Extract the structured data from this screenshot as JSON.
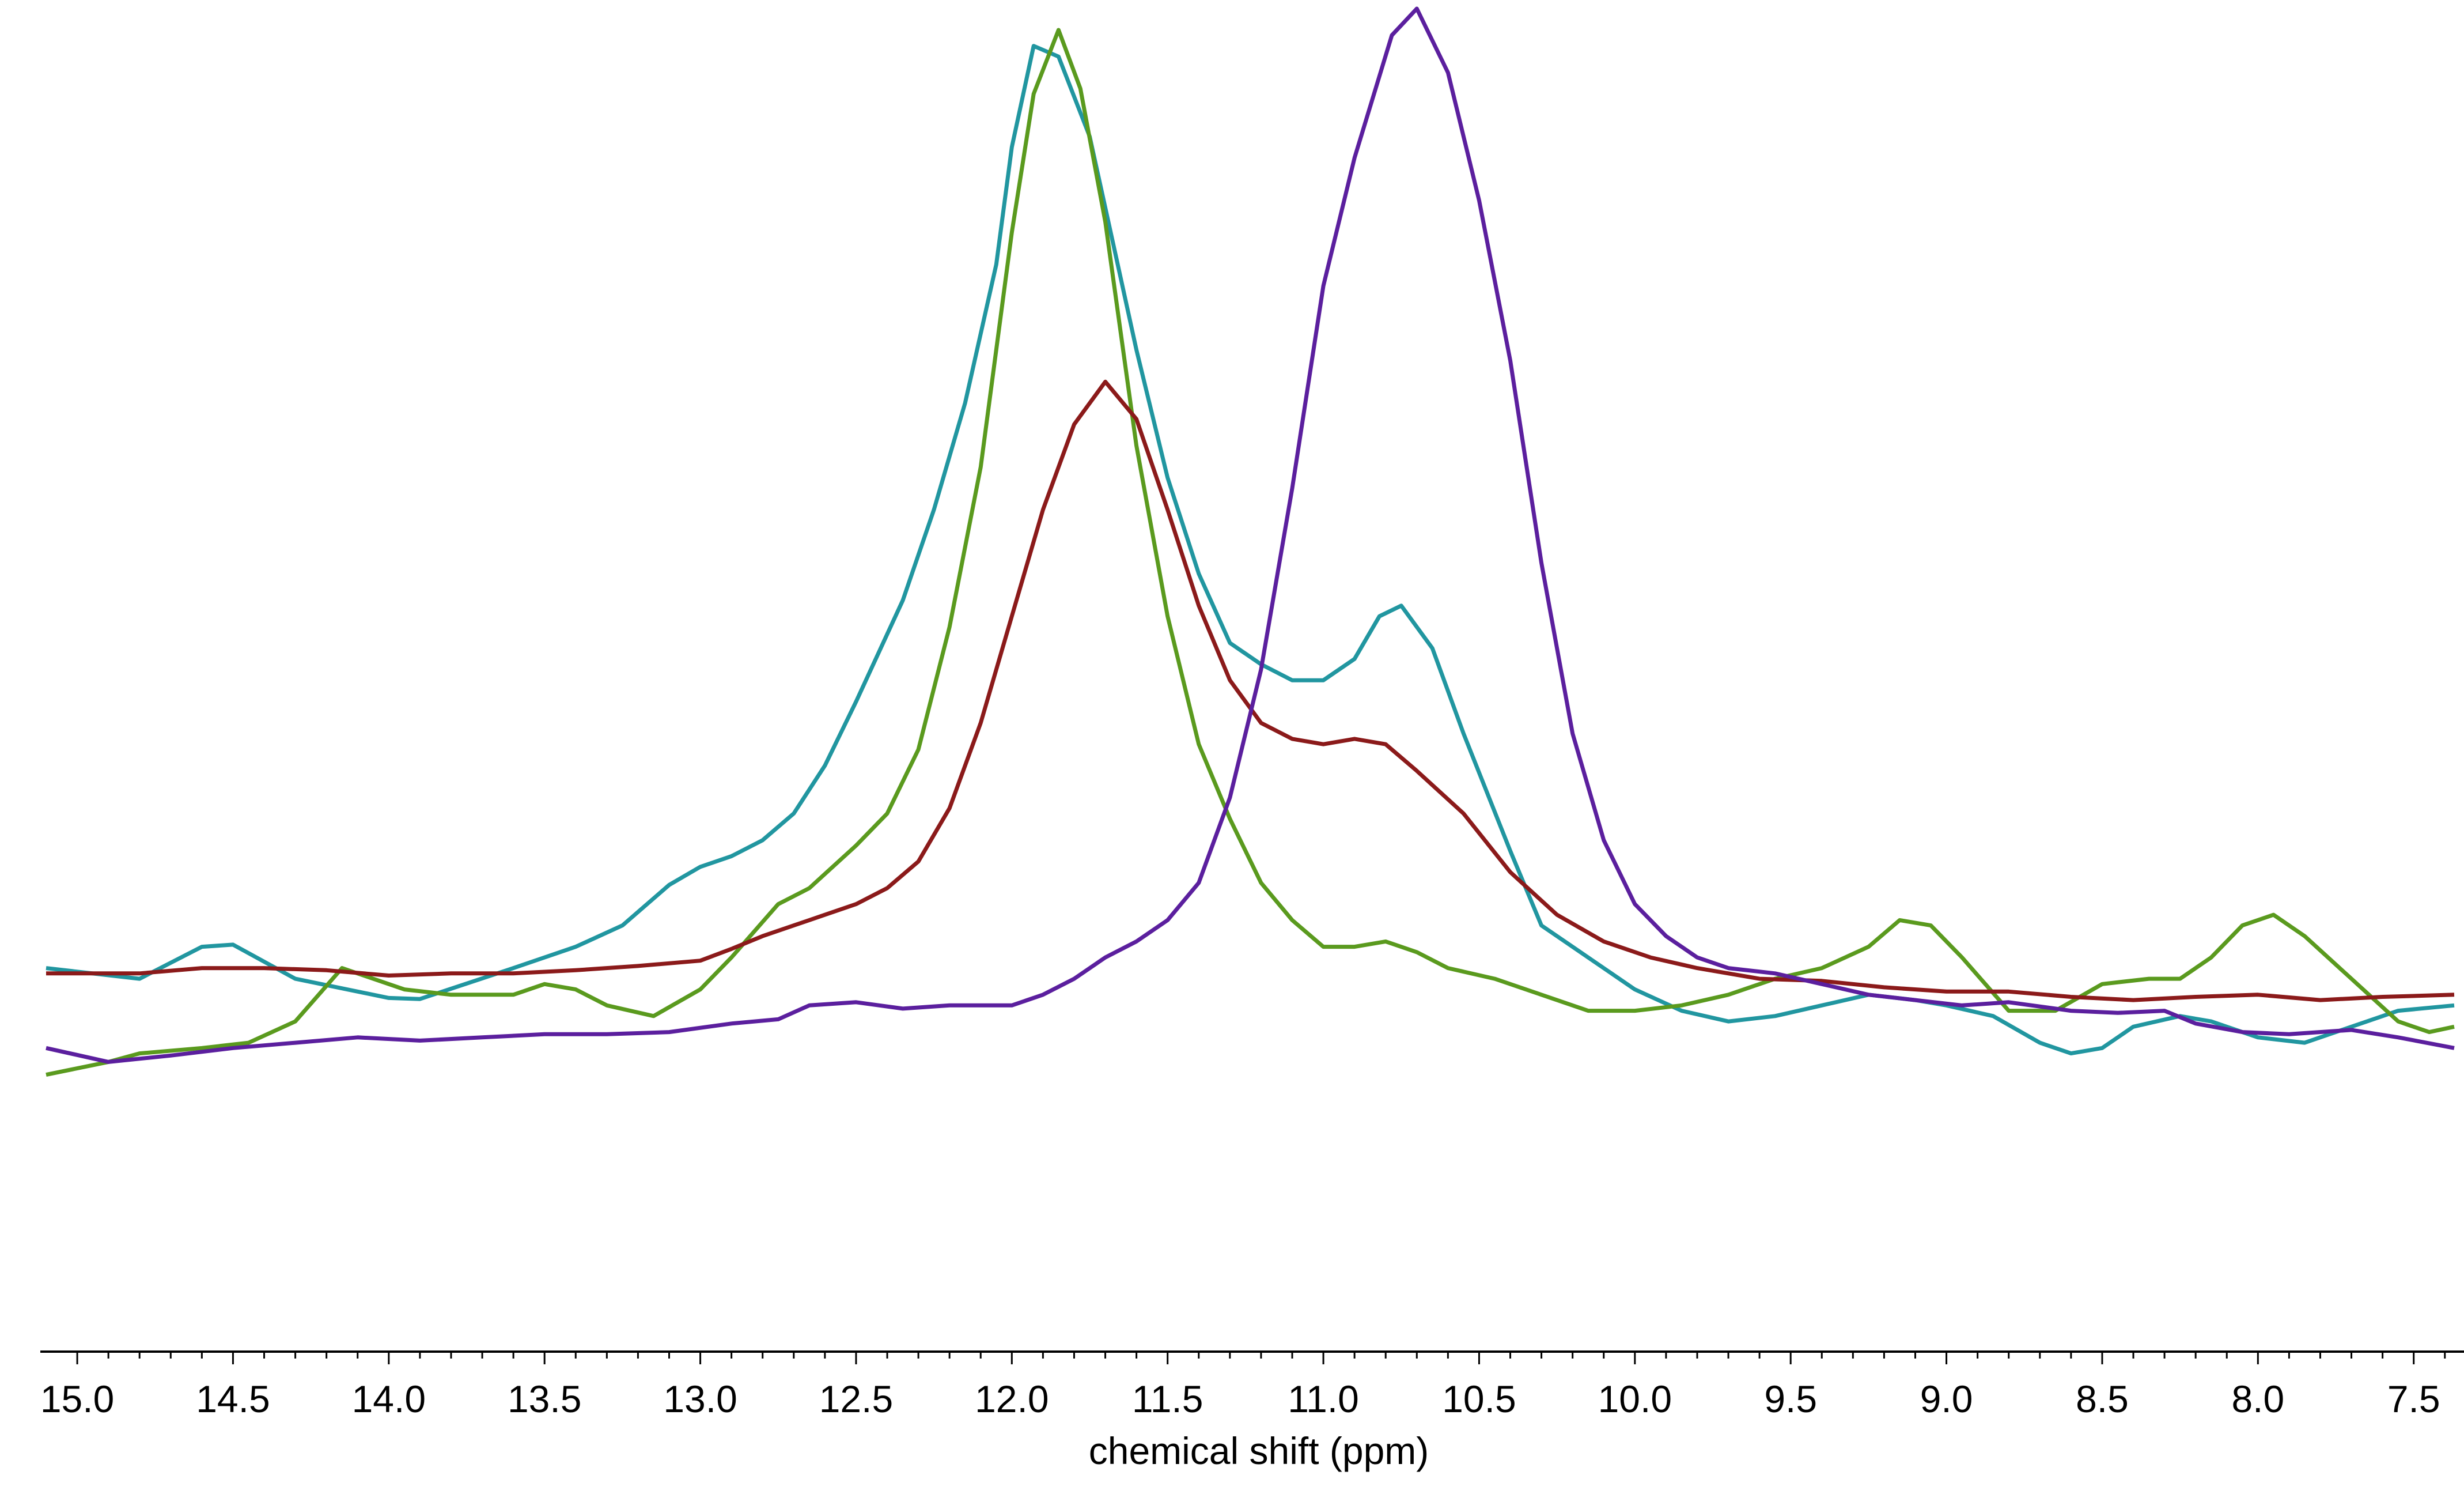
{
  "chart_data": {
    "type": "line",
    "title": "",
    "xlabel": "chemical shift (ppm)",
    "ylabel": "",
    "x_reversed": true,
    "xlim": [
      15.1,
      7.37
    ],
    "ylim": [
      -0.13,
      1.0
    ],
    "grid": false,
    "legend": "none",
    "x_ticks": [
      "15.0",
      "14.5",
      "14.0",
      "13.5",
      "13.0",
      "12.5",
      "12.0",
      "11.5",
      "11.0",
      "10.5",
      "10.0",
      "9.5",
      "9.0",
      "8.5",
      "8.0",
      "7.5"
    ],
    "series": [
      {
        "color": "#2196a0",
        "points": [
          [
            15.1,
            0.1
          ],
          [
            14.8,
            0.09
          ],
          [
            14.6,
            0.12
          ],
          [
            14.5,
            0.122
          ],
          [
            14.3,
            0.09
          ],
          [
            14.0,
            0.072
          ],
          [
            13.9,
            0.071
          ],
          [
            13.6,
            0.1
          ],
          [
            13.4,
            0.12
          ],
          [
            13.25,
            0.14
          ],
          [
            13.1,
            0.178
          ],
          [
            13.0,
            0.195
          ],
          [
            12.9,
            0.205
          ],
          [
            12.8,
            0.22
          ],
          [
            12.7,
            0.245
          ],
          [
            12.6,
            0.29
          ],
          [
            12.5,
            0.35
          ],
          [
            12.35,
            0.445
          ],
          [
            12.25,
            0.53
          ],
          [
            12.15,
            0.63
          ],
          [
            12.05,
            0.76
          ],
          [
            12.0,
            0.87
          ],
          [
            11.93,
            0.965
          ],
          [
            11.85,
            0.955
          ],
          [
            11.75,
            0.88
          ],
          [
            11.6,
            0.68
          ],
          [
            11.5,
            0.56
          ],
          [
            11.4,
            0.47
          ],
          [
            11.3,
            0.405
          ],
          [
            11.2,
            0.385
          ],
          [
            11.1,
            0.37
          ],
          [
            11.0,
            0.37
          ],
          [
            10.9,
            0.39
          ],
          [
            10.82,
            0.43
          ],
          [
            10.75,
            0.44
          ],
          [
            10.65,
            0.4
          ],
          [
            10.55,
            0.32
          ],
          [
            10.4,
            0.21
          ],
          [
            10.3,
            0.14
          ],
          [
            10.15,
            0.11
          ],
          [
            10.0,
            0.08
          ],
          [
            9.85,
            0.06
          ],
          [
            9.7,
            0.05
          ],
          [
            9.55,
            0.055
          ],
          [
            9.4,
            0.065
          ],
          [
            9.25,
            0.075
          ],
          [
            9.1,
            0.07
          ],
          [
            9.0,
            0.065
          ],
          [
            8.85,
            0.055
          ],
          [
            8.7,
            0.03
          ],
          [
            8.6,
            0.02
          ],
          [
            8.5,
            0.025
          ],
          [
            8.4,
            0.045
          ],
          [
            8.25,
            0.055
          ],
          [
            8.15,
            0.05
          ],
          [
            8.0,
            0.035
          ],
          [
            7.85,
            0.03
          ],
          [
            7.7,
            0.045
          ],
          [
            7.55,
            0.06
          ],
          [
            7.37,
            0.065
          ]
        ]
      },
      {
        "color": "#5a9a1e",
        "points": [
          [
            15.1,
            0.0
          ],
          [
            14.9,
            0.012
          ],
          [
            14.8,
            0.02
          ],
          [
            14.6,
            0.025
          ],
          [
            14.45,
            0.03
          ],
          [
            14.3,
            0.05
          ],
          [
            14.15,
            0.1
          ],
          [
            14.05,
            0.09
          ],
          [
            13.95,
            0.08
          ],
          [
            13.8,
            0.075
          ],
          [
            13.6,
            0.075
          ],
          [
            13.5,
            0.085
          ],
          [
            13.4,
            0.08
          ],
          [
            13.3,
            0.065
          ],
          [
            13.15,
            0.055
          ],
          [
            13.0,
            0.08
          ],
          [
            12.9,
            0.11
          ],
          [
            12.75,
            0.16
          ],
          [
            12.65,
            0.175
          ],
          [
            12.5,
            0.215
          ],
          [
            12.4,
            0.245
          ],
          [
            12.3,
            0.305
          ],
          [
            12.2,
            0.42
          ],
          [
            12.1,
            0.57
          ],
          [
            12.0,
            0.79
          ],
          [
            11.93,
            0.92
          ],
          [
            11.85,
            0.98
          ],
          [
            11.78,
            0.925
          ],
          [
            11.7,
            0.8
          ],
          [
            11.6,
            0.59
          ],
          [
            11.5,
            0.43
          ],
          [
            11.4,
            0.31
          ],
          [
            11.3,
            0.24
          ],
          [
            11.2,
            0.18
          ],
          [
            11.1,
            0.145
          ],
          [
            11.0,
            0.12
          ],
          [
            10.9,
            0.12
          ],
          [
            10.8,
            0.125
          ],
          [
            10.7,
            0.115
          ],
          [
            10.6,
            0.1
          ],
          [
            10.45,
            0.09
          ],
          [
            10.3,
            0.075
          ],
          [
            10.15,
            0.06
          ],
          [
            10.0,
            0.06
          ],
          [
            9.85,
            0.065
          ],
          [
            9.7,
            0.075
          ],
          [
            9.55,
            0.09
          ],
          [
            9.4,
            0.1
          ],
          [
            9.25,
            0.12
          ],
          [
            9.15,
            0.145
          ],
          [
            9.05,
            0.14
          ],
          [
            8.95,
            0.11
          ],
          [
            8.8,
            0.06
          ],
          [
            8.65,
            0.06
          ],
          [
            8.5,
            0.085
          ],
          [
            8.35,
            0.09
          ],
          [
            8.25,
            0.09
          ],
          [
            8.15,
            0.11
          ],
          [
            8.05,
            0.14
          ],
          [
            7.95,
            0.15
          ],
          [
            7.85,
            0.13
          ],
          [
            7.7,
            0.09
          ],
          [
            7.55,
            0.05
          ],
          [
            7.45,
            0.04
          ],
          [
            7.37,
            0.045
          ]
        ]
      },
      {
        "color": "#8b1a1a",
        "points": [
          [
            15.1,
            0.095
          ],
          [
            14.8,
            0.095
          ],
          [
            14.6,
            0.1
          ],
          [
            14.4,
            0.1
          ],
          [
            14.2,
            0.098
          ],
          [
            14.0,
            0.093
          ],
          [
            13.8,
            0.095
          ],
          [
            13.6,
            0.095
          ],
          [
            13.4,
            0.098
          ],
          [
            13.2,
            0.102
          ],
          [
            13.0,
            0.107
          ],
          [
            12.9,
            0.118
          ],
          [
            12.8,
            0.13
          ],
          [
            12.7,
            0.14
          ],
          [
            12.6,
            0.15
          ],
          [
            12.5,
            0.16
          ],
          [
            12.4,
            0.175
          ],
          [
            12.3,
            0.2
          ],
          [
            12.2,
            0.25
          ],
          [
            12.1,
            0.33
          ],
          [
            12.0,
            0.43
          ],
          [
            11.9,
            0.53
          ],
          [
            11.8,
            0.61
          ],
          [
            11.7,
            0.65
          ],
          [
            11.6,
            0.615
          ],
          [
            11.5,
            0.53
          ],
          [
            11.4,
            0.44
          ],
          [
            11.3,
            0.37
          ],
          [
            11.2,
            0.33
          ],
          [
            11.1,
            0.315
          ],
          [
            11.0,
            0.31
          ],
          [
            10.9,
            0.315
          ],
          [
            10.8,
            0.31
          ],
          [
            10.7,
            0.285
          ],
          [
            10.55,
            0.245
          ],
          [
            10.4,
            0.19
          ],
          [
            10.25,
            0.15
          ],
          [
            10.1,
            0.125
          ],
          [
            9.95,
            0.11
          ],
          [
            9.8,
            0.1
          ],
          [
            9.6,
            0.09
          ],
          [
            9.4,
            0.088
          ],
          [
            9.2,
            0.082
          ],
          [
            9.0,
            0.078
          ],
          [
            8.8,
            0.078
          ],
          [
            8.6,
            0.073
          ],
          [
            8.4,
            0.07
          ],
          [
            8.2,
            0.073
          ],
          [
            8.0,
            0.075
          ],
          [
            7.8,
            0.07
          ],
          [
            7.6,
            0.073
          ],
          [
            7.37,
            0.075
          ]
        ]
      },
      {
        "color": "#5b1f9e",
        "points": [
          [
            15.1,
            0.025
          ],
          [
            14.9,
            0.012
          ],
          [
            14.7,
            0.018
          ],
          [
            14.5,
            0.025
          ],
          [
            14.3,
            0.03
          ],
          [
            14.1,
            0.035
          ],
          [
            13.9,
            0.032
          ],
          [
            13.7,
            0.035
          ],
          [
            13.5,
            0.038
          ],
          [
            13.3,
            0.038
          ],
          [
            13.1,
            0.04
          ],
          [
            12.9,
            0.048
          ],
          [
            12.75,
            0.052
          ],
          [
            12.65,
            0.065
          ],
          [
            12.5,
            0.068
          ],
          [
            12.35,
            0.062
          ],
          [
            12.2,
            0.065
          ],
          [
            12.0,
            0.065
          ],
          [
            11.9,
            0.075
          ],
          [
            11.8,
            0.09
          ],
          [
            11.7,
            0.11
          ],
          [
            11.6,
            0.125
          ],
          [
            11.5,
            0.145
          ],
          [
            11.4,
            0.18
          ],
          [
            11.3,
            0.26
          ],
          [
            11.2,
            0.38
          ],
          [
            11.1,
            0.55
          ],
          [
            11.0,
            0.74
          ],
          [
            10.9,
            0.86
          ],
          [
            10.78,
            0.975
          ],
          [
            10.7,
            1.0
          ],
          [
            10.6,
            0.94
          ],
          [
            10.5,
            0.82
          ],
          [
            10.4,
            0.67
          ],
          [
            10.3,
            0.48
          ],
          [
            10.2,
            0.32
          ],
          [
            10.1,
            0.22
          ],
          [
            10.0,
            0.16
          ],
          [
            9.9,
            0.13
          ],
          [
            9.8,
            0.11
          ],
          [
            9.7,
            0.1
          ],
          [
            9.55,
            0.095
          ],
          [
            9.4,
            0.085
          ],
          [
            9.25,
            0.075
          ],
          [
            9.1,
            0.07
          ],
          [
            8.95,
            0.065
          ],
          [
            8.8,
            0.068
          ],
          [
            8.6,
            0.06
          ],
          [
            8.45,
            0.058
          ],
          [
            8.3,
            0.06
          ],
          [
            8.2,
            0.048
          ],
          [
            8.05,
            0.04
          ],
          [
            7.9,
            0.038
          ],
          [
            7.7,
            0.042
          ],
          [
            7.55,
            0.035
          ],
          [
            7.37,
            0.025
          ]
        ]
      }
    ]
  }
}
